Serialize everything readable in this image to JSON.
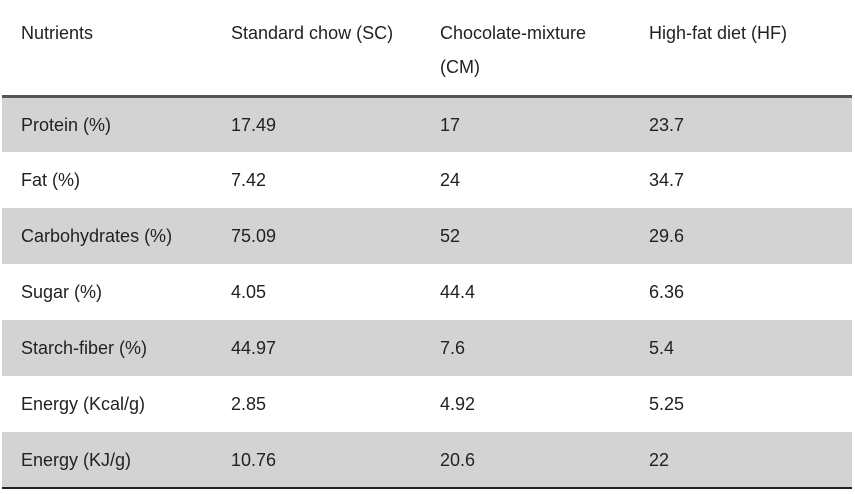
{
  "table": {
    "headers": [
      "Nutrients",
      "Standard chow (SC)",
      "Chocolate-mixture (CM)",
      "High-fat diet (HF)"
    ],
    "rows": [
      [
        "Protein (%)",
        "17.49",
        "17",
        "23.7"
      ],
      [
        "Fat (%)",
        "7.42",
        "24",
        "34.7"
      ],
      [
        "Carbohydrates (%)",
        "75.09",
        "52",
        "29.6"
      ],
      [
        "Sugar (%)",
        "4.05",
        "44.4",
        "6.36"
      ],
      [
        "Starch-fiber (%)",
        "44.97",
        "7.6",
        "5.4"
      ],
      [
        "Energy (Kcal/g)",
        "2.85",
        "4.92",
        "5.25"
      ],
      [
        "Energy (KJ/g)",
        "10.76",
        "20.6",
        "22"
      ]
    ],
    "shaded_row_color": "#d3d3d3",
    "rule_color": "#555555"
  }
}
